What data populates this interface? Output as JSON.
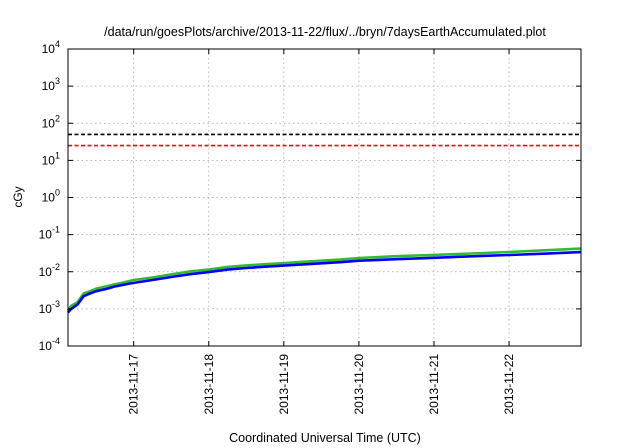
{
  "chart_data": {
    "type": "line",
    "title": "/data/run/goesPlots/archive/2013-11-22/flux/../bryn/7daysEarthAccumulated.plot",
    "xlabel": "Coordinated Universal Time (UTC)",
    "ylabel": "cGy",
    "yscale": "log",
    "ylim": [
      0.0001,
      10000
    ],
    "xlim": [
      "2013-11-16T03:00",
      "2013-11-22T23:00"
    ],
    "y_ticks": [
      {
        "base": "10",
        "exp": "-4",
        "value": 0.0001
      },
      {
        "base": "10",
        "exp": "-3",
        "value": 0.001
      },
      {
        "base": "10",
        "exp": "-2",
        "value": 0.01
      },
      {
        "base": "10",
        "exp": "-1",
        "value": 0.1
      },
      {
        "base": "10",
        "exp": "0",
        "value": 1
      },
      {
        "base": "10",
        "exp": "1",
        "value": 10
      },
      {
        "base": "10",
        "exp": "2",
        "value": 100
      },
      {
        "base": "10",
        "exp": "3",
        "value": 1000
      },
      {
        "base": "10",
        "exp": "4",
        "value": 10000
      }
    ],
    "x_ticks": [
      {
        "label": "2013-11-17",
        "value": "2013-11-17T00:00"
      },
      {
        "label": "2013-11-18",
        "value": "2013-11-18T00:00"
      },
      {
        "label": "2013-11-19",
        "value": "2013-11-19T00:00"
      },
      {
        "label": "2013-11-20",
        "value": "2013-11-20T00:00"
      },
      {
        "label": "2013-11-21",
        "value": "2013-11-21T00:00"
      },
      {
        "label": "2013-11-22",
        "value": "2013-11-22T00:00"
      }
    ],
    "grid": true,
    "reference_lines": [
      {
        "y": 50,
        "color": "#000000"
      },
      {
        "y": 25,
        "color": "#ff0000"
      }
    ],
    "series": [
      {
        "color": "#33bb33",
        "x": [
          "2013-11-16T03:00",
          "2013-11-16T04:00",
          "2013-11-16T06:00",
          "2013-11-16T08:00",
          "2013-11-16T10:00",
          "2013-11-16T12:00",
          "2013-11-16T15:00",
          "2013-11-16T18:00",
          "2013-11-16T21:00",
          "2013-11-17T00:00",
          "2013-11-17T06:00",
          "2013-11-17T12:00",
          "2013-11-17T18:00",
          "2013-11-18T00:00",
          "2013-11-18T06:00",
          "2013-11-18T12:00",
          "2013-11-18T18:00",
          "2013-11-19T00:00",
          "2013-11-19T06:00",
          "2013-11-19T12:00",
          "2013-11-19T18:00",
          "2013-11-20T00:00",
          "2013-11-20T12:00",
          "2013-11-21T00:00",
          "2013-11-21T12:00",
          "2013-11-22T00:00",
          "2013-11-22T12:00",
          "2013-11-22T23:00"
        ],
        "values": [
          0.0009,
          0.0012,
          0.0015,
          0.0026,
          0.003,
          0.0035,
          0.004,
          0.0046,
          0.0052,
          0.006,
          0.007,
          0.0085,
          0.0102,
          0.0115,
          0.0135,
          0.0148,
          0.016,
          0.017,
          0.0185,
          0.0198,
          0.0212,
          0.0235,
          0.0262,
          0.0285,
          0.031,
          0.034,
          0.038,
          0.042
        ]
      },
      {
        "color": "#0000ff",
        "x": [
          "2013-11-16T03:00",
          "2013-11-16T04:00",
          "2013-11-16T06:00",
          "2013-11-16T08:00",
          "2013-11-16T10:00",
          "2013-11-16T12:00",
          "2013-11-16T15:00",
          "2013-11-16T18:00",
          "2013-11-16T21:00",
          "2013-11-17T00:00",
          "2013-11-17T06:00",
          "2013-11-17T12:00",
          "2013-11-17T18:00",
          "2013-11-18T00:00",
          "2013-11-18T06:00",
          "2013-11-18T12:00",
          "2013-11-18T18:00",
          "2013-11-19T00:00",
          "2013-11-19T06:00",
          "2013-11-19T12:00",
          "2013-11-19T18:00",
          "2013-11-20T00:00",
          "2013-11-20T12:00",
          "2013-11-21T00:00",
          "2013-11-21T12:00",
          "2013-11-22T00:00",
          "2013-11-22T12:00",
          "2013-11-22T23:00"
        ],
        "values": [
          0.0008,
          0.001,
          0.0013,
          0.0022,
          0.0026,
          0.003,
          0.0034,
          0.004,
          0.0045,
          0.005,
          0.006,
          0.0072,
          0.0086,
          0.0098,
          0.0114,
          0.0126,
          0.0137,
          0.0146,
          0.0158,
          0.0169,
          0.0181,
          0.0198,
          0.0218,
          0.0238,
          0.026,
          0.0282,
          0.0308,
          0.0338
        ]
      }
    ]
  }
}
